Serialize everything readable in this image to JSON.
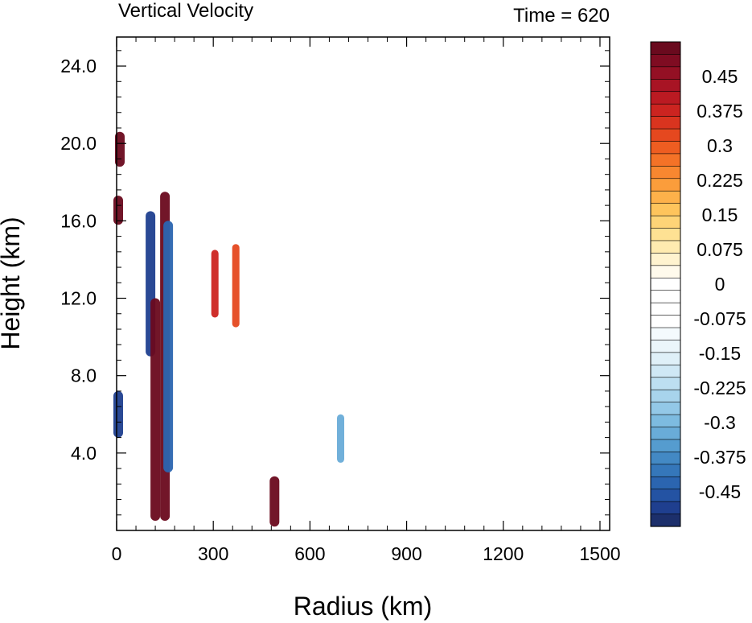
{
  "chart_data": {
    "type": "heatmap",
    "title": "Vertical Velocity",
    "subtitle": "Time = 620",
    "xlabel": "Radius (km)",
    "ylabel": "Height (km)",
    "xlim": [
      0,
      1530
    ],
    "ylim": [
      0,
      25.5
    ],
    "x_ticks": [
      0,
      300,
      600,
      900,
      1200,
      1500
    ],
    "x_tick_labels": [
      "0",
      "300",
      "600",
      "900",
      "1200",
      "1500"
    ],
    "y_ticks": [
      4,
      8,
      12,
      16,
      20,
      24
    ],
    "y_tick_labels": [
      "4.0",
      "8.0",
      "12.0",
      "16.0",
      "20.0",
      "24.0"
    ],
    "colorbar": {
      "levels": [
        -0.525,
        -0.5,
        -0.475,
        -0.45,
        -0.425,
        -0.4,
        -0.375,
        -0.35,
        -0.325,
        -0.3,
        -0.275,
        -0.25,
        -0.225,
        -0.2,
        -0.175,
        -0.15,
        -0.125,
        -0.1,
        -0.075,
        -0.05,
        -0.025,
        0,
        0.025,
        0.05,
        0.075,
        0.1,
        0.125,
        0.15,
        0.175,
        0.2,
        0.225,
        0.25,
        0.275,
        0.3,
        0.325,
        0.35,
        0.375,
        0.4,
        0.425,
        0.45,
        0.475,
        0.5,
        0.525
      ],
      "labels": [
        "0.45",
        "0.375",
        "0.3",
        "0.225",
        "0.15",
        "0.075",
        "0",
        "-0.075",
        "-0.15",
        "-0.225",
        "-0.3",
        "-0.375",
        "-0.45"
      ],
      "label_values": [
        0.45,
        0.375,
        0.3,
        0.225,
        0.15,
        0.075,
        0,
        -0.075,
        -0.15,
        -0.225,
        -0.3,
        -0.375,
        -0.45
      ],
      "colors": [
        "#1c2f6b",
        "#1f3f8f",
        "#2453a3",
        "#2b65b0",
        "#3577ba",
        "#4389c4",
        "#559ccf",
        "#69acd8",
        "#7dbbe0",
        "#93c8e7",
        "#a8d4ec",
        "#bddff1",
        "#cfe8f5",
        "#dff0f8",
        "#ebf6fb",
        "#f4fafd",
        "#ffffff",
        "#ffffff",
        "#ffffff",
        "#ffffff",
        "#fffaec",
        "#fff3cf",
        "#ffebb0",
        "#fee193",
        "#fed477",
        "#fec45c",
        "#fdb14a",
        "#fb9d3b",
        "#f88730",
        "#f47227",
        "#ee5d21",
        "#e5481f",
        "#d9341f",
        "#cc2420",
        "#bb1a22",
        "#a81424",
        "#941024",
        "#7f0c22",
        "#6a0a1e"
      ]
    },
    "features": [
      {
        "kind": "updraft",
        "x": 150,
        "y_range": [
          0.5,
          17.5
        ],
        "w": 0.5
      },
      {
        "kind": "downdraft",
        "x": 105,
        "y_range": [
          9,
          16.5
        ],
        "w": -0.5
      },
      {
        "kind": "downdraft",
        "x": 160,
        "y_range": [
          3,
          16
        ],
        "w": -0.45
      },
      {
        "kind": "updraft",
        "x": 120,
        "y_range": [
          0.5,
          12
        ],
        "w": 0.45
      },
      {
        "kind": "downdraft",
        "x": 5,
        "y_range": [
          4.8,
          7.2
        ],
        "w": -0.5
      },
      {
        "kind": "updraft",
        "x": 10,
        "y_range": [
          18.8,
          20.6
        ],
        "w": 0.5
      },
      {
        "kind": "updraft",
        "x": 5,
        "y_range": [
          15.8,
          17.3
        ],
        "w": 0.45
      },
      {
        "kind": "updraft",
        "x": 305,
        "y_range": [
          11,
          14.5
        ],
        "w": 0.3
      },
      {
        "kind": "updraft",
        "x": 370,
        "y_range": [
          10.5,
          14.8
        ],
        "w": 0.25
      },
      {
        "kind": "updraft",
        "x": 490,
        "y_range": [
          0.2,
          2.8
        ],
        "w": 0.45
      },
      {
        "kind": "downdraft",
        "x": 695,
        "y_range": [
          3.5,
          6
        ],
        "w": -0.35
      }
    ]
  }
}
